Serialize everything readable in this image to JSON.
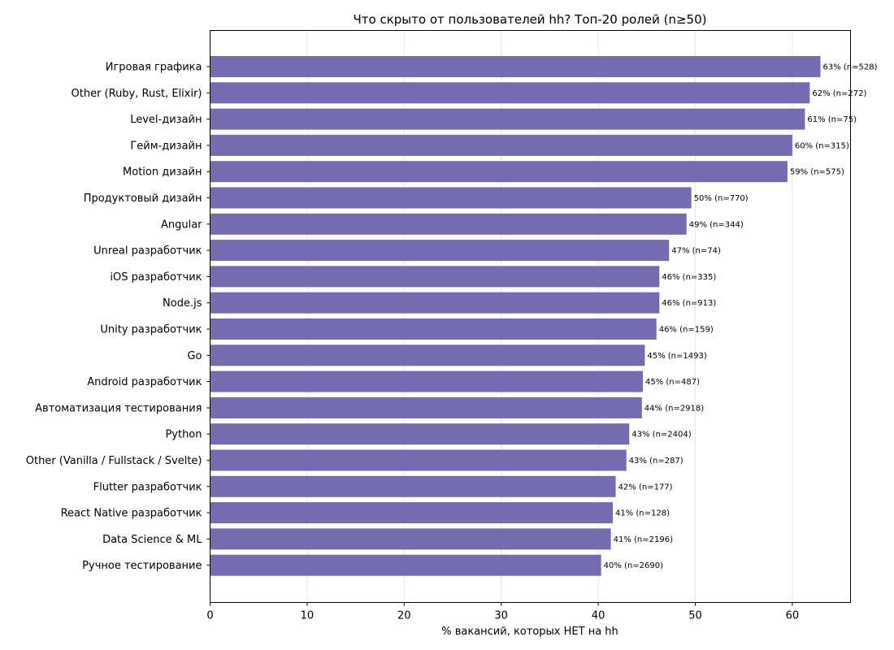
{
  "chart_data": {
    "type": "bar",
    "orientation": "horizontal",
    "title": "Что скрыто от пользователей hh? Топ-20 ролей (n≥50)",
    "xlabel": "% вакансий, которых НЕТ на hh",
    "ylabel": "",
    "xlim": [
      0,
      66
    ],
    "xticks": [
      0,
      10,
      20,
      30,
      40,
      50,
      60
    ],
    "grid": "x",
    "bar_color": "#756bb1",
    "categories": [
      "Игровая графика",
      "Other (Ruby, Rust, Elixir)",
      "Level-дизайн",
      "Гейм-дизайн",
      "Motion дизайн",
      "Продуктовый дизайн",
      "Angular",
      "Unreal разработчик",
      "iOS разработчик",
      "Node.js",
      "Unity разработчик",
      "Go",
      "Android разработчик",
      "Автоматизация тестирования",
      "Python",
      "Other (Vanilla / Fullstack / Svelte)",
      "Flutter разработчик",
      "React Native разработчик",
      "Data Science & ML",
      "Ручное тестирование"
    ],
    "values": [
      62.9,
      61.8,
      61.3,
      60.0,
      59.5,
      49.6,
      49.1,
      47.3,
      46.3,
      46.3,
      46.0,
      44.8,
      44.6,
      44.5,
      43.2,
      42.9,
      41.8,
      41.5,
      41.3,
      40.3
    ],
    "data_labels": [
      "63% (n=528)",
      "62% (n=272)",
      "61% (n=75)",
      "60% (n=315)",
      "59% (n=575)",
      "50% (n=770)",
      "49% (n=344)",
      "47% (n=74)",
      "46% (n=335)",
      "46% (n=913)",
      "46% (n=159)",
      "45% (n=1493)",
      "45% (n=487)",
      "44% (n=2918)",
      "43% (n=2404)",
      "43% (n=287)",
      "42% (n=177)",
      "41% (n=128)",
      "41% (n=2196)",
      "40% (n=2690)"
    ]
  }
}
